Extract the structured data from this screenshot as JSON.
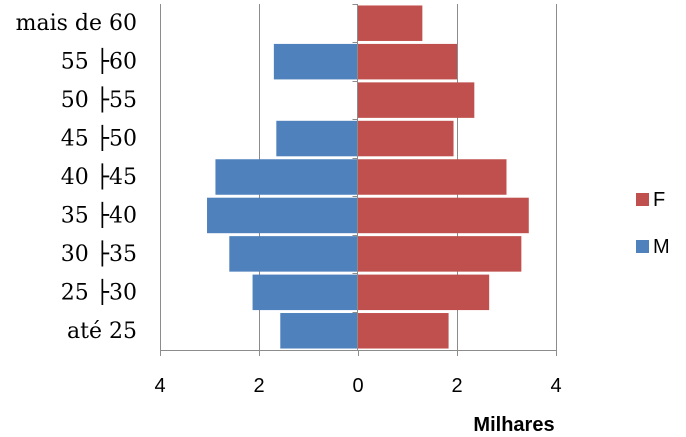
{
  "chart_data": {
    "type": "bar",
    "orientation": "horizontal",
    "layout": "population-pyramid",
    "categories": [
      "mais de 60",
      "55 ├60",
      "50 ├55",
      "45 ├50",
      "40 ├45",
      "35 ├40",
      "30 ├35",
      "25 ├30",
      "até 25"
    ],
    "series": [
      {
        "name": "F",
        "color": "#c0504d",
        "values": [
          1.3,
          2.0,
          2.35,
          1.93,
          3.0,
          3.45,
          3.3,
          2.65,
          1.83
        ]
      },
      {
        "name": "M",
        "color": "#4f81bd",
        "values": [
          0,
          1.7,
          0,
          1.65,
          2.88,
          3.05,
          2.6,
          2.13,
          1.57
        ]
      }
    ],
    "xlim": [
      -4,
      4
    ],
    "xticks": [
      -4,
      -2,
      0,
      2,
      4
    ],
    "xtick_labels": [
      "4",
      "2",
      "0",
      "2",
      "4"
    ],
    "xlabel": "Milhares",
    "ylabel": "",
    "title": "",
    "grid": "vertical",
    "legend_position": "right"
  }
}
